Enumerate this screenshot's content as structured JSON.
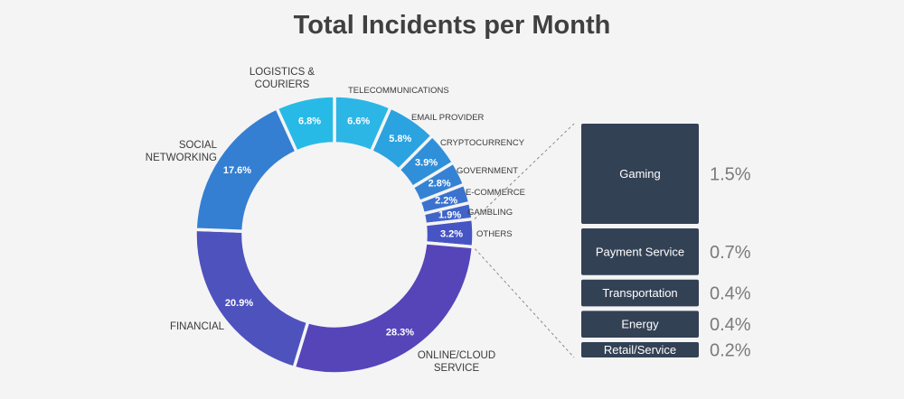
{
  "chart_data": {
    "type": "pie",
    "title": "Total Incidents per Month",
    "donut": true,
    "slices": [
      {
        "name": "TELECOMMUNICATIONS",
        "value": 6.6,
        "label": "6.6%",
        "color": "#2cb6e6",
        "ext_label": [
          "TELECOMMUNICATIONS"
        ]
      },
      {
        "name": "EMAIL PROVIDER",
        "value": 5.8,
        "label": "5.8%",
        "color": "#2aa3e0",
        "ext_label": [
          "EMAIL PROVIDER"
        ]
      },
      {
        "name": "CRYPTOCURRENCY",
        "value": 3.9,
        "label": "3.9%",
        "color": "#2f8fd9",
        "ext_label": [
          "CRYPTOCURRENCY"
        ]
      },
      {
        "name": "GOVERNMENT",
        "value": 2.8,
        "label": "2.8%",
        "color": "#3582d4",
        "ext_label": [
          "GOVERNMENT"
        ]
      },
      {
        "name": "E-COMMERCE",
        "value": 2.2,
        "label": "2.2%",
        "color": "#3b72cf",
        "ext_label": [
          "E-COMMERCE"
        ]
      },
      {
        "name": "GAMBLING",
        "value": 1.9,
        "label": "1.9%",
        "color": "#4164c9",
        "ext_label": [
          "GAMBLING"
        ]
      },
      {
        "name": "OTHERS",
        "value": 3.2,
        "label": "3.2%",
        "color": "#4655c3",
        "ext_label": [
          "OTHERS"
        ]
      },
      {
        "name": "ONLINE/CLOUD SERVICE",
        "value": 28.3,
        "label": "28.3%",
        "color": "#5545b9",
        "ext_label": [
          "ONLINE/CLOUD",
          "SERVICE"
        ]
      },
      {
        "name": "FINANCIAL",
        "value": 20.9,
        "label": "20.9%",
        "color": "#4e52bd",
        "ext_label": [
          "FINANCIAL"
        ]
      },
      {
        "name": "SOCIAL NETWORKING",
        "value": 17.6,
        "label": "17.6%",
        "color": "#357fd2",
        "ext_label": [
          "SOCIAL",
          "NETWORKING"
        ]
      },
      {
        "name": "LOGISTICS & COURIERS",
        "value": 6.8,
        "label": "6.8%",
        "color": "#28bae6",
        "ext_label": [
          "LOGISTICS &",
          "COURIERS"
        ]
      }
    ],
    "breakdown": {
      "of": "OTHERS",
      "items": [
        {
          "name": "Gaming",
          "value": 1.5,
          "label": "1.5%"
        },
        {
          "name": "Payment Service",
          "value": 0.7,
          "label": "0.7%"
        },
        {
          "name": "Transportation",
          "value": 0.4,
          "label": "0.4%"
        },
        {
          "name": "Energy",
          "value": 0.4,
          "label": "0.4%"
        },
        {
          "name": "Retail/Service",
          "value": 0.2,
          "label": "0.2%"
        }
      ],
      "color": "#334155"
    }
  }
}
